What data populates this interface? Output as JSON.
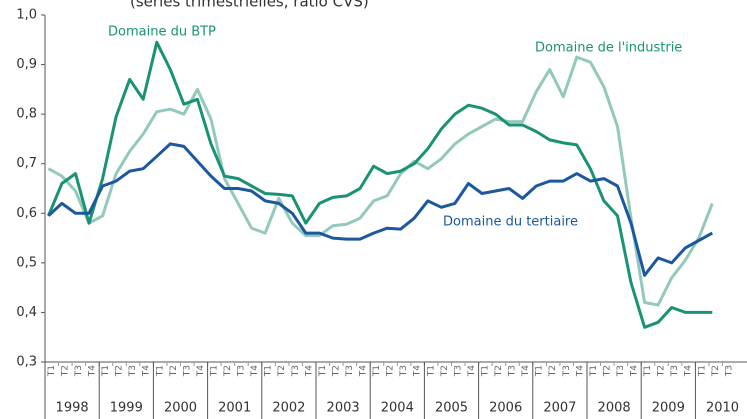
{
  "chart_data": {
    "type": "line",
    "subtitle": "(séries trimestrielles, ratio CVS)",
    "categories": [
      "T1",
      "T2",
      "T3",
      "T4",
      "T1",
      "T2",
      "T3",
      "T4",
      "T1",
      "T2",
      "T3",
      "T4",
      "T1",
      "T2",
      "T3",
      "T4",
      "T1",
      "T2",
      "T3",
      "T4",
      "T1",
      "T2",
      "T3",
      "T4",
      "T1",
      "T2",
      "T3",
      "T4",
      "T1",
      "T2",
      "T3",
      "T4",
      "T1",
      "T2",
      "T3",
      "T4",
      "T1",
      "T2",
      "T3",
      "T4",
      "T1",
      "T2",
      "T3",
      "T4",
      "T1",
      "T2",
      "T3",
      "T4",
      "T1",
      "T2",
      "T3"
    ],
    "years": [
      "1998",
      "1999",
      "2000",
      "2001",
      "2002",
      "2003",
      "2004",
      "2005",
      "2006",
      "2007",
      "2008",
      "2009",
      "2010"
    ],
    "series": [
      {
        "name": "Domaine de l'industrie",
        "color": "#93c9bc",
        "values": [
          0.69,
          0.675,
          0.645,
          0.58,
          0.595,
          0.68,
          0.725,
          0.76,
          0.805,
          0.81,
          0.8,
          0.85,
          0.79,
          0.67,
          0.62,
          0.57,
          0.56,
          0.63,
          0.58,
          0.555,
          0.555,
          0.575,
          0.578,
          0.59,
          0.625,
          0.635,
          0.68,
          0.705,
          0.69,
          0.71,
          0.74,
          0.76,
          0.775,
          0.79,
          0.785,
          0.785,
          0.845,
          0.89,
          0.835,
          0.915,
          0.905,
          0.855,
          0.775,
          0.59,
          0.42,
          0.415,
          0.47,
          0.505,
          0.55,
          0.62,
          null
        ]
      },
      {
        "name": "Domaine du BTP",
        "color": "#1a9274",
        "values": [
          0.595,
          0.66,
          0.68,
          0.58,
          0.67,
          0.795,
          0.87,
          0.83,
          0.945,
          0.89,
          0.82,
          0.83,
          0.74,
          0.675,
          0.67,
          0.655,
          0.64,
          0.638,
          0.635,
          0.58,
          0.62,
          0.632,
          0.635,
          0.65,
          0.695,
          0.68,
          0.685,
          0.7,
          0.73,
          0.77,
          0.8,
          0.818,
          0.812,
          0.8,
          0.778,
          0.778,
          0.765,
          0.748,
          0.742,
          0.738,
          0.69,
          0.625,
          0.595,
          0.46,
          0.37,
          0.38,
          0.41,
          0.4,
          0.4,
          0.4,
          null
        ]
      },
      {
        "name": "Domaine du tertiaire",
        "color": "#1b58a0",
        "values": [
          0.595,
          0.62,
          0.6,
          0.6,
          0.655,
          0.665,
          0.685,
          0.69,
          0.715,
          0.74,
          0.735,
          0.705,
          0.675,
          0.65,
          0.65,
          0.645,
          0.625,
          0.62,
          0.6,
          0.56,
          0.56,
          0.55,
          0.548,
          0.548,
          0.56,
          0.57,
          0.568,
          0.59,
          0.625,
          0.612,
          0.62,
          0.66,
          0.64,
          0.645,
          0.65,
          0.63,
          0.655,
          0.665,
          0.665,
          0.68,
          0.665,
          0.67,
          0.655,
          0.58,
          0.475,
          0.51,
          0.5,
          0.53,
          0.545,
          0.56,
          null
        ]
      }
    ],
    "ylim": [
      0.3,
      1.0
    ],
    "yticks": [
      {
        "value": 0.3,
        "label": "0,3"
      },
      {
        "value": 0.4,
        "label": "0,4"
      },
      {
        "value": 0.5,
        "label": "0,5"
      },
      {
        "value": 0.6,
        "label": "0,6"
      },
      {
        "value": 0.7,
        "label": "0,7"
      },
      {
        "value": 0.8,
        "label": "0,8"
      },
      {
        "value": 0.9,
        "label": "0,9"
      },
      {
        "value": 1.0,
        "label": "1,0"
      }
    ],
    "grid": false
  }
}
